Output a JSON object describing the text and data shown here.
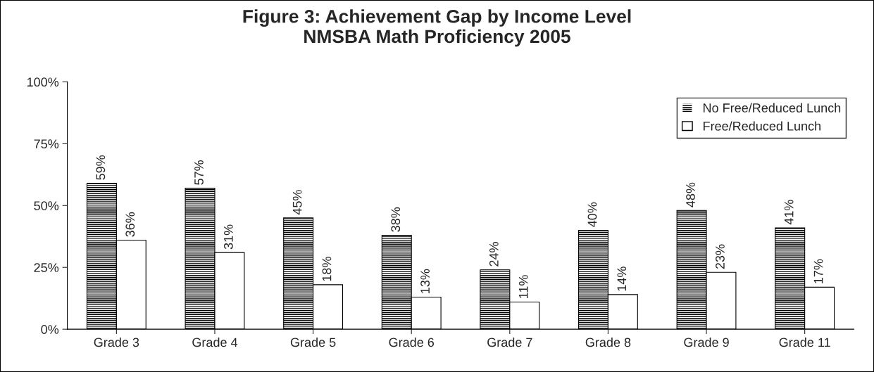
{
  "chart_data": {
    "type": "bar",
    "title": "Figure 3: Achievement Gap by Income Level\nNMSBA Math Proficiency 2005",
    "categories": [
      "Grade 3",
      "Grade 4",
      "Grade 5",
      "Grade 6",
      "Grade 7",
      "Grade 8",
      "Grade 9",
      "Grade 11"
    ],
    "series": [
      {
        "name": "No Free/Reduced Lunch",
        "color": "#000000",
        "values": [
          59,
          57,
          45,
          38,
          24,
          40,
          48,
          41
        ],
        "value_labels": [
          "59%",
          "57%",
          "45%",
          "38%",
          "24%",
          "40%",
          "48%",
          "41%"
        ]
      },
      {
        "name": "Free/Reduced Lunch",
        "color": "#ffffff",
        "values": [
          36,
          31,
          18,
          13,
          11,
          14,
          23,
          17
        ],
        "value_labels": [
          "36%",
          "31%",
          "18%",
          "13%",
          "11%",
          "14%",
          "23%",
          "17%"
        ]
      }
    ],
    "ylim": [
      0,
      100
    ],
    "yticks": [
      {
        "value": 0,
        "label": "0%"
      },
      {
        "value": 25,
        "label": "25%"
      },
      {
        "value": 50,
        "label": "50%"
      },
      {
        "value": 75,
        "label": "75%"
      },
      {
        "value": 100,
        "label": "100%"
      }
    ],
    "grid": false,
    "legend": "top right"
  }
}
